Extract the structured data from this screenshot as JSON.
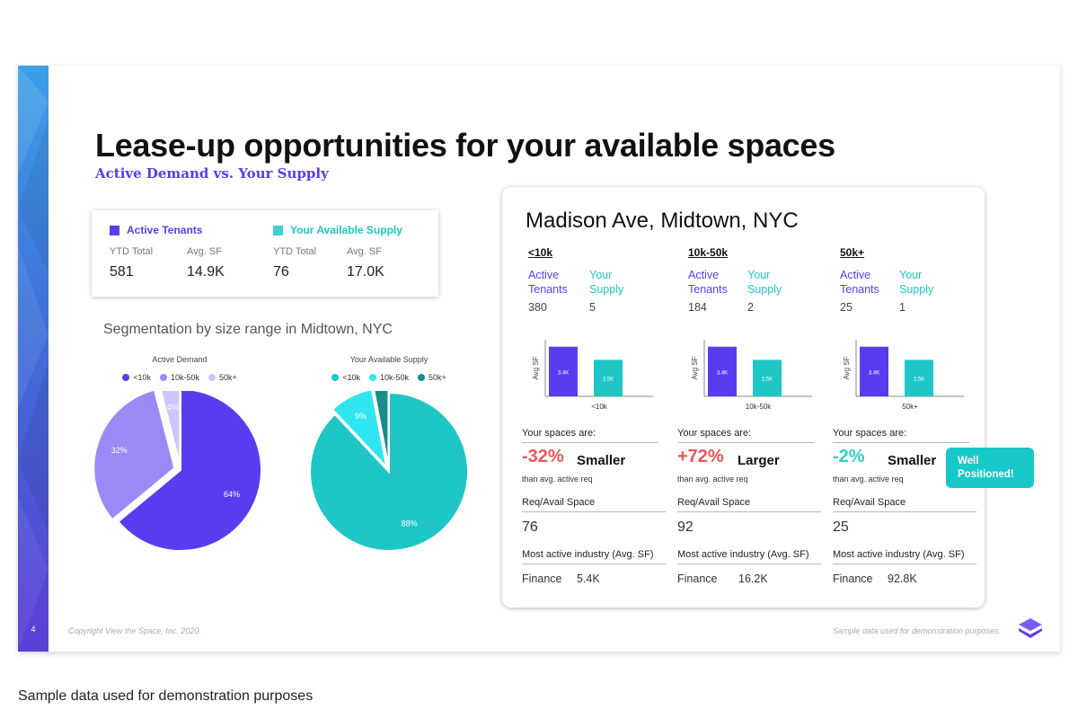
{
  "colors": {
    "purple": "#5a3cf0",
    "lavender": "#9b8af5",
    "light_lavender": "#cdc6fb",
    "teal": "#1fc6c6",
    "cyan": "#2fe6f0",
    "dark_teal": "#1a8a8a",
    "negative": "#f05454",
    "positive": "#f05454",
    "neutral": "#19c9c9"
  },
  "slide": {
    "page_number": "4",
    "title": "Lease-up opportunities for your available spaces",
    "subtitle": "Active Demand vs. Your Supply",
    "footer_left": "Copyright View the Space, Inc. 2020.",
    "footer_right": "Sample data used for demonstration purposes.",
    "logo_icon": "vts-chevron-logo"
  },
  "totals": {
    "active": {
      "legend": "Active Tenants",
      "ytd_label": "YTD Total",
      "avg_label": "Avg. SF",
      "ytd": "581",
      "avg": "14.9K"
    },
    "supply": {
      "legend": "Your Available Supply",
      "ytd_label": "YTD Total",
      "avg_label": "Avg. SF",
      "ytd": "76",
      "avg": "17.0K"
    }
  },
  "segmentation_title": "Segmentation by size range in Midtown, NYC",
  "chart_data": [
    {
      "type": "pie",
      "title": "Active Demand",
      "labels": [
        "<10k",
        "10k-50k",
        "50k+"
      ],
      "values": [
        64,
        32,
        4
      ],
      "value_labels": [
        "64%",
        "32%",
        "4%"
      ],
      "legend": "top"
    },
    {
      "type": "pie",
      "title": "Your Available Supply",
      "labels": [
        "<10k",
        "10k-50k",
        "50k+"
      ],
      "values": [
        88,
        9,
        3
      ],
      "value_labels": [
        "88%",
        "9%",
        ""
      ],
      "legend": "top"
    },
    {
      "type": "bar",
      "categories": [
        "<10k"
      ],
      "series": [
        {
          "values": [
            3.4
          ],
          "labels": [
            "3.4K"
          ]
        },
        {
          "values": [
            2.5
          ],
          "labels": [
            "2.5K"
          ]
        }
      ],
      "ylabel": "Avg SF",
      "ylim": [
        0,
        4
      ]
    },
    {
      "type": "bar",
      "categories": [
        "10k-50k"
      ],
      "series": [
        {
          "values": [
            3.4
          ],
          "labels": [
            "3.4K"
          ]
        },
        {
          "values": [
            2.5
          ],
          "labels": [
            "2.5K"
          ]
        }
      ],
      "ylabel": "Avg SF",
      "ylim": [
        0,
        4
      ]
    },
    {
      "type": "bar",
      "categories": [
        "50k+"
      ],
      "series": [
        {
          "values": [
            3.4
          ],
          "labels": [
            "3.4K"
          ]
        },
        {
          "values": [
            2.5
          ],
          "labels": [
            "2.5K"
          ]
        }
      ],
      "ylabel": "Avg SF",
      "ylim": [
        0,
        4
      ]
    }
  ],
  "location": {
    "title": "Madison Ave, Midtown, NYC",
    "columns": [
      {
        "range": "<10k",
        "active_label": "Active Tenants",
        "supply_label": "Your Supply",
        "active_count": "380",
        "supply_count": "5",
        "spaces_are": "Your spaces are:",
        "pct": "-32%",
        "size_word": "Smaller",
        "tone": "negative",
        "than": "than avg. active req",
        "req_label": "Req/Avail Space",
        "req_value": "76",
        "industry_label": "Most active industry (Avg. SF)",
        "industry": "Finance",
        "industry_value": "5.4K"
      },
      {
        "range": "10k-50k",
        "active_label": "Active Tenants",
        "supply_label": "Your Supply",
        "active_count": "184",
        "supply_count": "2",
        "spaces_are": "Your spaces are:",
        "pct": "+72%",
        "size_word": "Larger",
        "tone": "positive",
        "than": "than avg. active req",
        "req_label": "Req/Avail Space",
        "req_value": "92",
        "industry_label": "Most active industry (Avg. SF)",
        "industry": "Finance",
        "industry_value": "16.2K"
      },
      {
        "range": "50k+",
        "active_label": "Active Tenants",
        "supply_label": "Your Supply",
        "active_count": "25",
        "supply_count": "1",
        "spaces_are": "Your spaces are:",
        "pct": "-2%",
        "size_word": "Smaller",
        "tone": "neutral",
        "than": "than avg. active req",
        "req_label": "Req/Avail Space",
        "req_value": "25",
        "industry_label": "Most active industry (Avg. SF)",
        "industry": "Finance",
        "industry_value": "92.8K"
      }
    ],
    "badge": [
      "Well",
      "Positioned!"
    ]
  },
  "caption": "Sample data used for demonstration purposes"
}
